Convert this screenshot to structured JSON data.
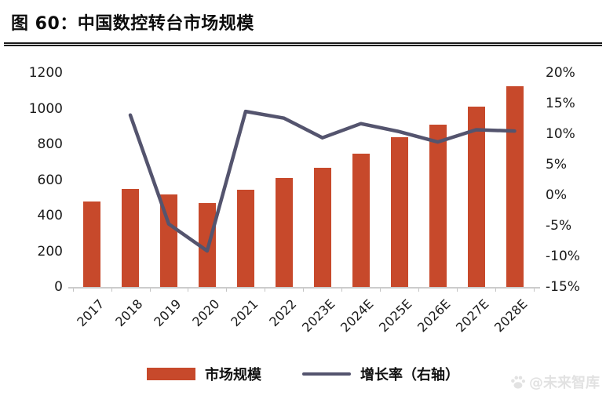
{
  "page": {
    "title": "图 60：中国数控转台市场规模",
    "watermark": {
      "text": "@未来智库",
      "icon": "paw-icon"
    }
  },
  "chart_data": {
    "type": "combo-bar-line",
    "title": "图 60：中国数控转台市场规模",
    "categories": [
      "2017",
      "2018",
      "2019",
      "2020",
      "2021",
      "2022",
      "2023E",
      "2024E",
      "2025E",
      "2026E",
      "2027E",
      "2028E"
    ],
    "series": [
      {
        "name": "市场规模",
        "type": "bar",
        "axis": "left",
        "color": "#C7492B",
        "values": [
          480,
          550,
          517,
          470,
          543,
          610,
          668,
          748,
          838,
          912,
          1010,
          1125
        ]
      },
      {
        "name": "增长率（右轴）",
        "type": "line",
        "axis": "right",
        "color": "#54546E",
        "values": [
          null,
          13.1,
          -4.7,
          -9.1,
          13.7,
          12.6,
          9.4,
          11.7,
          10.4,
          8.7,
          10.7,
          10.5
        ]
      }
    ],
    "left_axis": {
      "min": 0,
      "max": 1200,
      "step": 200,
      "tick_labels": [
        "0",
        "200",
        "400",
        "600",
        "800",
        "1000",
        "1200"
      ]
    },
    "right_axis": {
      "min": -15,
      "max": 20,
      "step": 5,
      "tick_labels": [
        "-15%",
        "-10%",
        "-5%",
        "0%",
        "5%",
        "10%",
        "15%",
        "20%"
      ]
    },
    "legend": {
      "position": "bottom",
      "entries": [
        "市场规模",
        "增长率（右轴）"
      ]
    },
    "grid": false,
    "axis_line_color": "#cccccc"
  }
}
